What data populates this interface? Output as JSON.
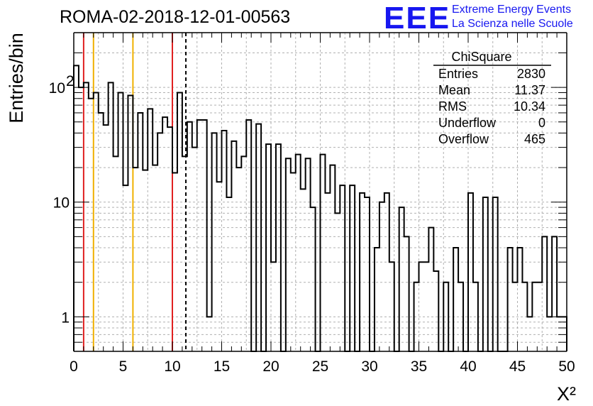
{
  "chart_data": {
    "type": "histogram",
    "title": "ROMA-02-2018-12-01-00563",
    "xlabel": "X²",
    "ylabel": "Entries/bin",
    "xlim": [
      0,
      50
    ],
    "ylim": [
      0.5,
      300
    ],
    "log_y": true,
    "grid": true,
    "bin_width": 0.5,
    "x_ticks": [
      "0",
      "5",
      "10",
      "15",
      "20",
      "25",
      "30",
      "35",
      "40",
      "45",
      "50"
    ],
    "y_ticks": [
      {
        "value": 1,
        "label": "1",
        "sup": ""
      },
      {
        "value": 10,
        "label": "10",
        "sup": ""
      },
      {
        "value": 100,
        "label": "10",
        "sup": "2"
      }
    ],
    "bin_contents": [
      155,
      100,
      110,
      80,
      90,
      60,
      47,
      110,
      25,
      90,
      14,
      85,
      20,
      60,
      19,
      65,
      21,
      40,
      55,
      45,
      18,
      90,
      25,
      50,
      30,
      52,
      52,
      1,
      40,
      15,
      42,
      11,
      34,
      20,
      25,
      52,
      0.3,
      48,
      0.3,
      32,
      3,
      32,
      0.3,
      24,
      18,
      26,
      13,
      24,
      9,
      0.3,
      26,
      12,
      21,
      8,
      14,
      0.3,
      14,
      0.3,
      12,
      11,
      0.3,
      4,
      10,
      12,
      3,
      0.3,
      9,
      5,
      0.3,
      2,
      3,
      3,
      6,
      2.5,
      0.3,
      2,
      0.3,
      4,
      2,
      0.3,
      12,
      2,
      0.3,
      11,
      0.3,
      11,
      0.3,
      0.3,
      4,
      2,
      4,
      2,
      1,
      2,
      2,
      5,
      1,
      5,
      1,
      1
    ],
    "vertical_lines": [
      {
        "x": 1,
        "color": "#e02020",
        "style": "solid"
      },
      {
        "x": 2,
        "color": "#f0b000",
        "style": "solid"
      },
      {
        "x": 6,
        "color": "#f0b000",
        "style": "solid"
      },
      {
        "x": 10,
        "color": "#e02020",
        "style": "solid"
      },
      {
        "x": 11.37,
        "color": "#000000",
        "style": "dashed"
      }
    ],
    "stats": {
      "header": "ChiSquare",
      "rows": [
        {
          "label": "Entries",
          "value": "2830"
        },
        {
          "label": "Mean",
          "value": "11.37"
        },
        {
          "label": "RMS",
          "value": "10.34"
        },
        {
          "label": "Underflow",
          "value": "0"
        },
        {
          "label": "Overflow",
          "value": "465"
        }
      ]
    }
  },
  "logo": {
    "mark": "EEE",
    "line1": "Extreme Energy Events",
    "line2": "La Scienza nelle Scuole",
    "color": "#1717f0"
  }
}
